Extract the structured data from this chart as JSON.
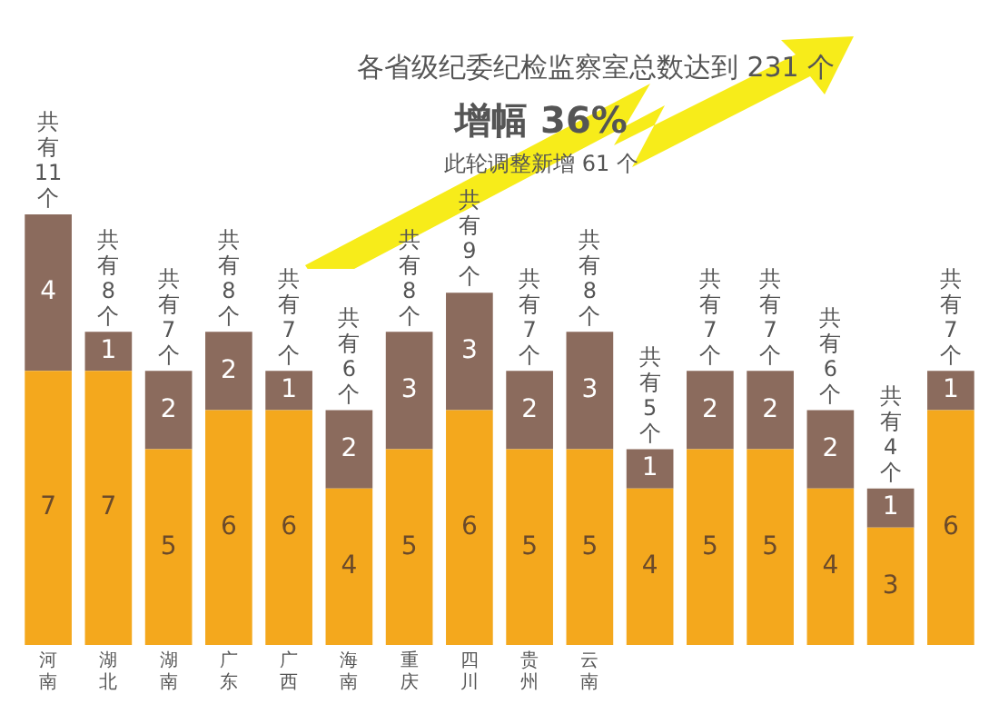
{
  "chart_data": {
    "type": "bar",
    "stacked": true,
    "title": "各省级纪委纪检监察室总数达到 231 个",
    "subtitle": "增幅 36%",
    "annotations": [
      "此轮调整新增 61 个"
    ],
    "categories": [
      "河南",
      "湖北",
      "湖南",
      "广东",
      "广西",
      "海南",
      "重庆",
      "四川",
      "贵州",
      "云南",
      null,
      null,
      null,
      null,
      null,
      null
    ],
    "series": [
      {
        "color": "#f4a81d",
        "values": [
          7,
          7,
          5,
          6,
          6,
          4,
          5,
          6,
          5,
          5,
          4,
          5,
          5,
          4,
          3,
          6
        ]
      },
      {
        "color": "#8b6b5d",
        "values": [
          4,
          1,
          2,
          2,
          1,
          2,
          3,
          3,
          2,
          3,
          1,
          2,
          2,
          2,
          1,
          1
        ]
      }
    ],
    "totals": [
      "共有11个",
      "共有8个",
      "共有7个",
      "共有8个",
      "共有7个",
      "共有6个",
      "共有8个",
      "共有9个",
      "共有7个",
      "共有8个",
      "共有5个",
      "共有7个",
      "共有7个",
      "共有6个",
      "共有4个",
      "共有7个"
    ],
    "data_labels": true,
    "grid": false,
    "legend": false
  }
}
